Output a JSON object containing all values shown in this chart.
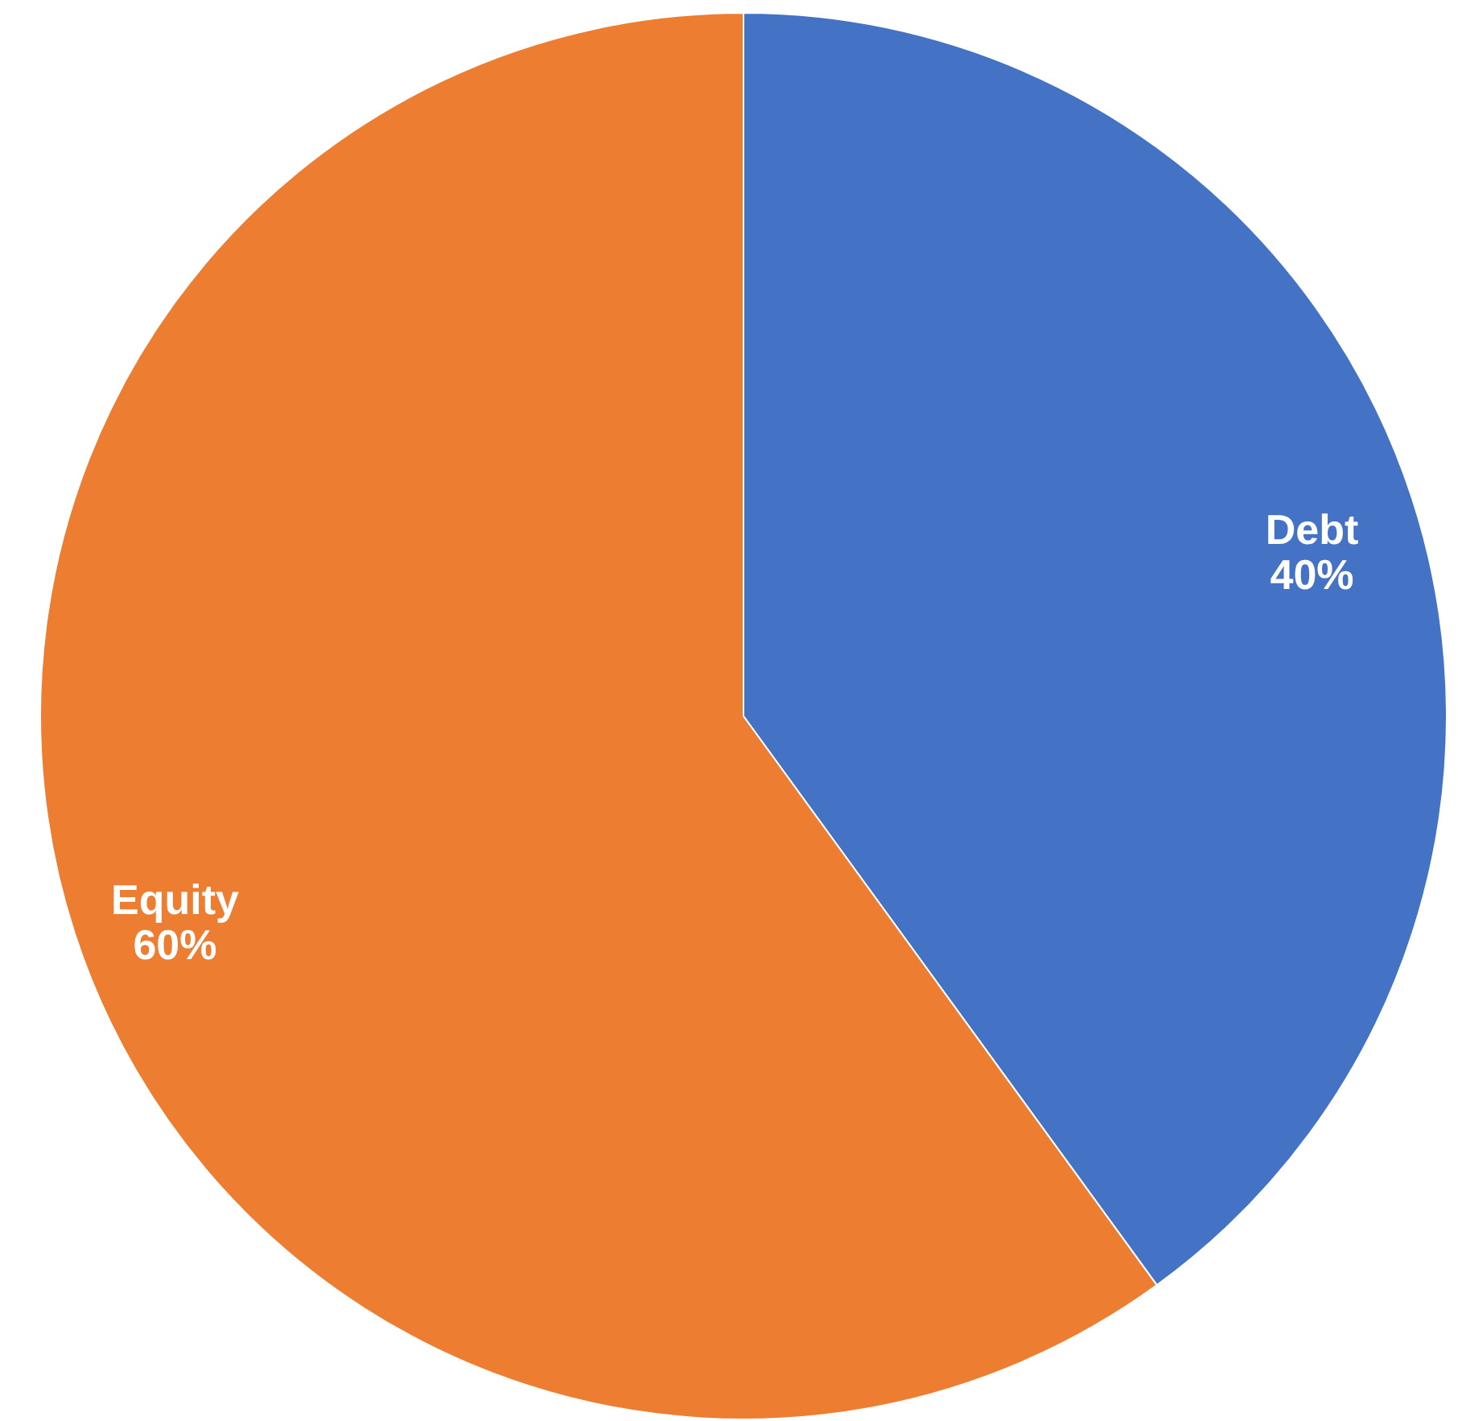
{
  "chart_data": {
    "type": "pie",
    "categories": [
      "Debt",
      "Equity"
    ],
    "values": [
      40,
      60
    ],
    "colors": [
      "#4472c4",
      "#ed7d31"
    ],
    "value_labels": [
      "40%",
      "60%"
    ]
  }
}
